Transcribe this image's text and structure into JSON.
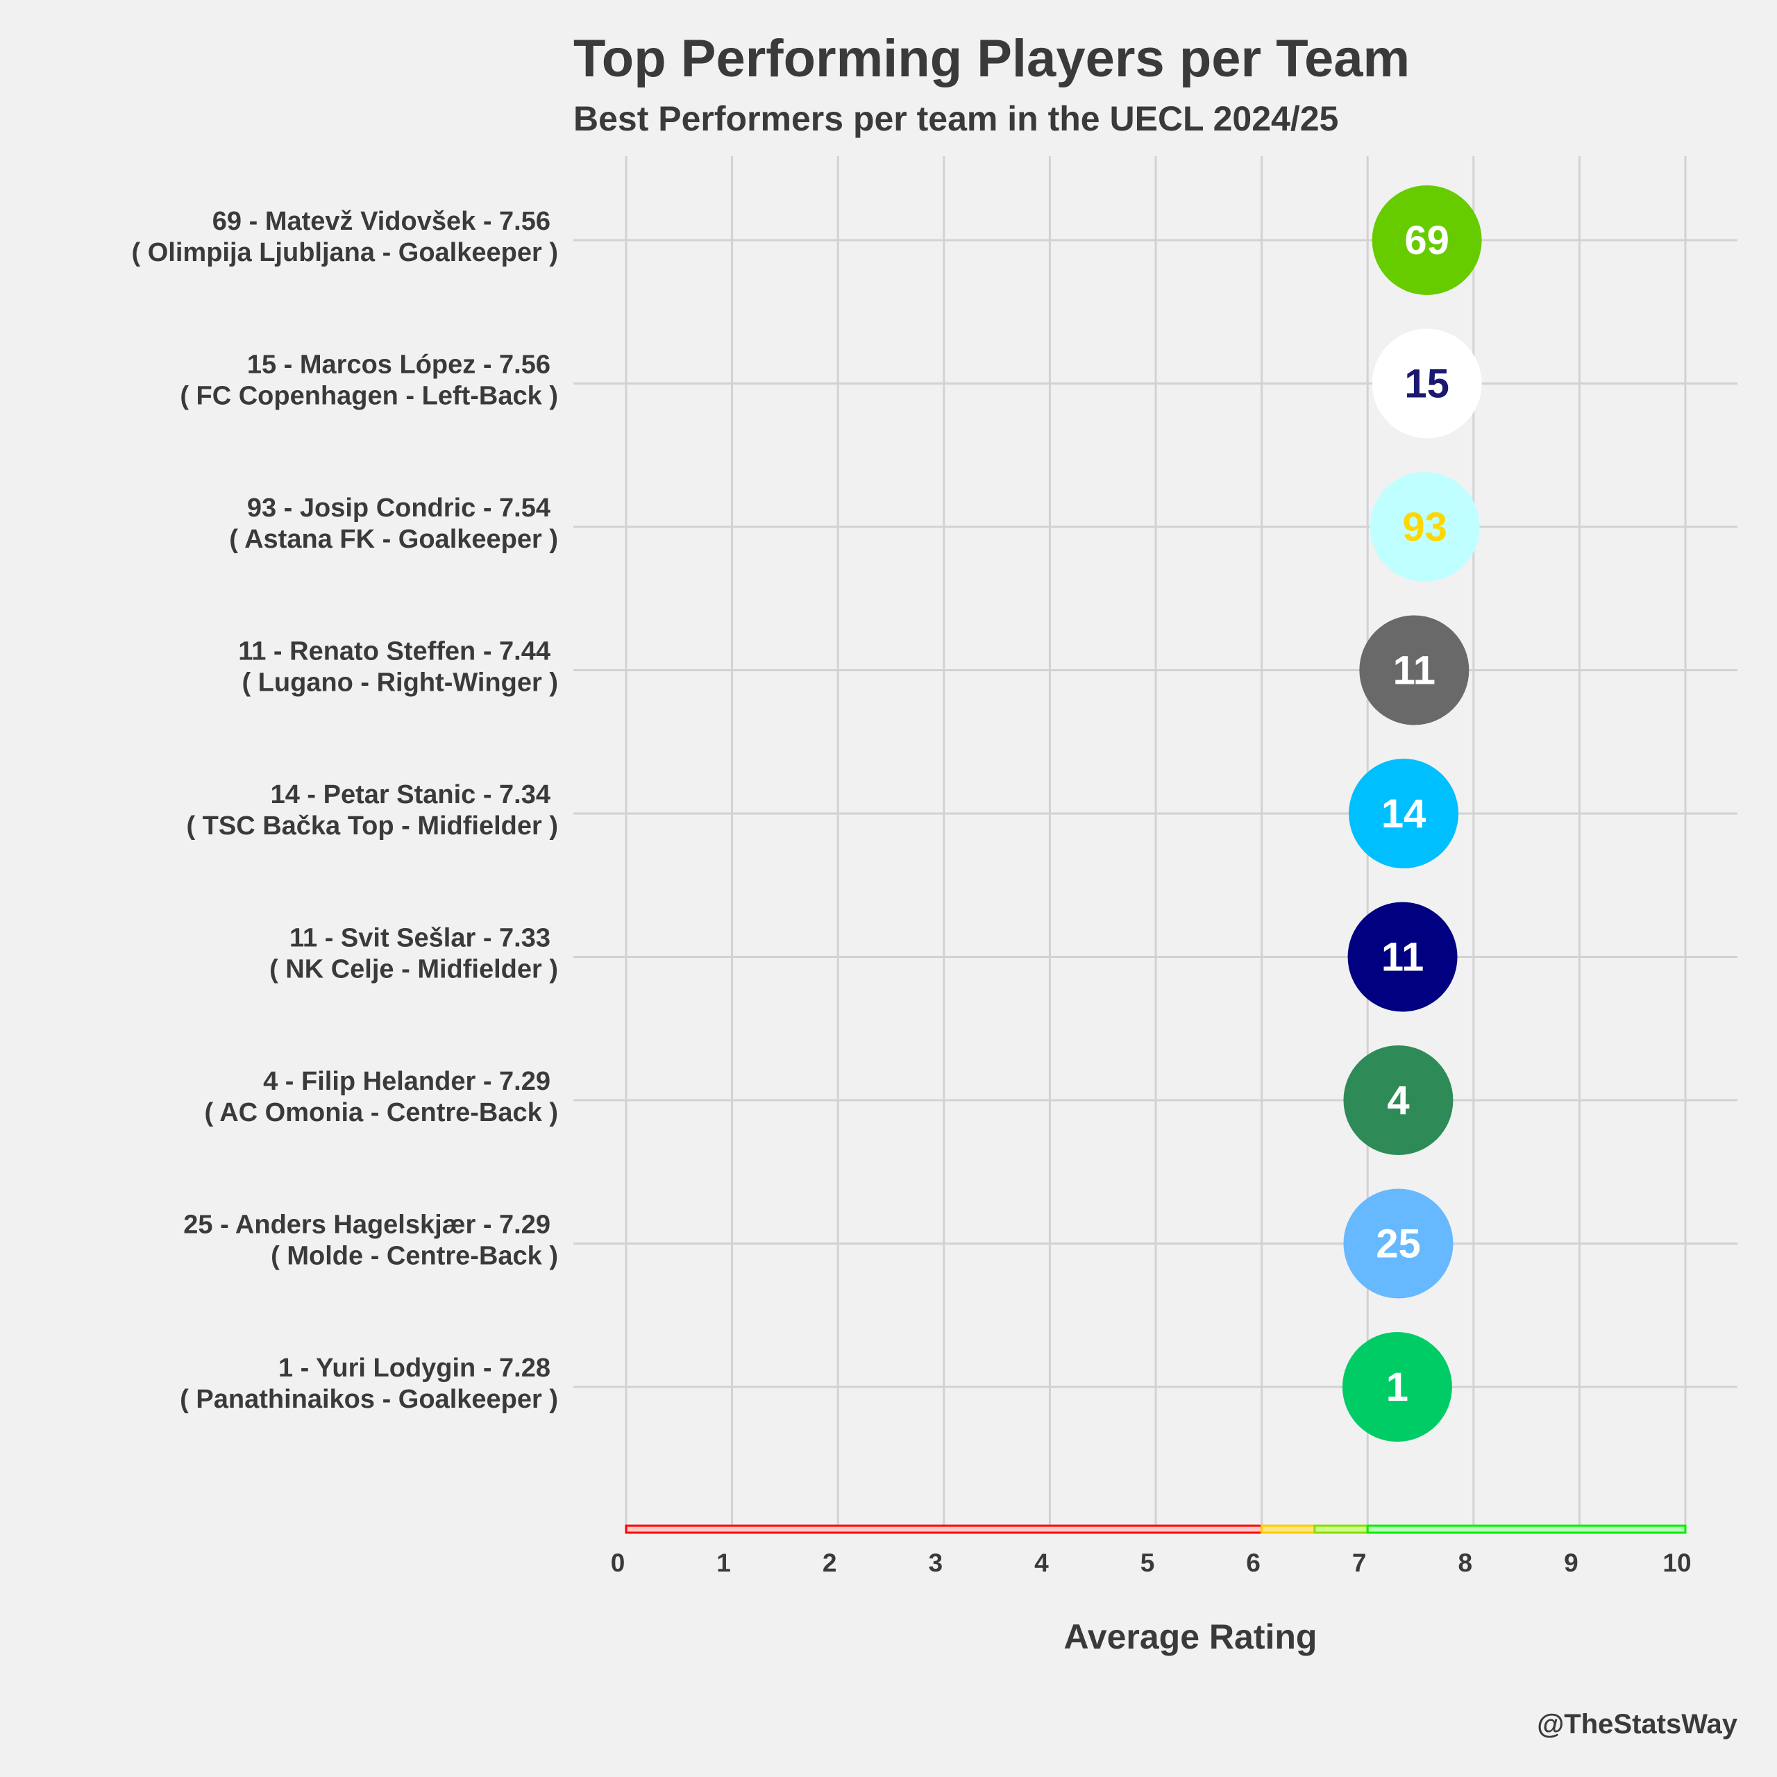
{
  "chart_data": {
    "type": "scatter",
    "title": "Top Performing Players per Team",
    "subtitle": "Best Performers per team in the UECL 2024/25",
    "xlabel": "Average Rating",
    "xlim": [
      0,
      10
    ],
    "x_ticks": [
      "0",
      "1",
      "2",
      "3",
      "4",
      "5",
      "6",
      "7",
      "8",
      "9",
      "10"
    ],
    "grid": true,
    "players": [
      {
        "number": "69",
        "name": "Matevž Vidovšek",
        "rating": 7.56,
        "team": "Olimpija Ljubljana",
        "position": "Goalkeeper",
        "label_line1": "69 - Matevž Vidovšek - 7.56",
        "label_line2": "( Olimpija Ljubljana - Goalkeeper )",
        "fill": "#66cc00",
        "text_color": "#ffffff"
      },
      {
        "number": "15",
        "name": "Marcos López",
        "rating": 7.56,
        "team": "FC Copenhagen",
        "position": "Left-Back",
        "label_line1": "15 - Marcos López - 7.56",
        "label_line2": "( FC Copenhagen - Left-Back )",
        "fill": "#ffffff",
        "text_color": "#191970"
      },
      {
        "number": "93",
        "name": "Josip Condric",
        "rating": 7.54,
        "team": "Astana FK",
        "position": "Goalkeeper",
        "label_line1": "93 - Josip Condric - 7.54",
        "label_line2": "( Astana FK - Goalkeeper )",
        "fill": "#bfffff",
        "text_color": "#ffd700"
      },
      {
        "number": "11",
        "name": "Renato Steffen",
        "rating": 7.44,
        "team": "Lugano",
        "position": "Right-Winger",
        "label_line1": "11 - Renato Steffen - 7.44",
        "label_line2": "( Lugano - Right-Winger )",
        "fill": "#696969",
        "text_color": "#ffffff"
      },
      {
        "number": "14",
        "name": "Petar Stanic",
        "rating": 7.34,
        "team": "TSC Bačka Top",
        "position": "Midfielder",
        "label_line1": "14 - Petar Stanic - 7.34",
        "label_line2": "( TSC Bačka Top - Midfielder )",
        "fill": "#00bfff",
        "text_color": "#ffffff"
      },
      {
        "number": "11",
        "name": "Svit Sešlar",
        "rating": 7.33,
        "team": "NK Celje",
        "position": "Midfielder",
        "label_line1": "11 - Svit Sešlar - 7.33",
        "label_line2": "( NK Celje - Midfielder )",
        "fill": "#000080",
        "text_color": "#ffffff"
      },
      {
        "number": "4",
        "name": "Filip Helander",
        "rating": 7.29,
        "team": "AC Omonia",
        "position": "Centre-Back",
        "label_line1": "4 - Filip Helander - 7.29",
        "label_line2": "( AC Omonia - Centre-Back )",
        "fill": "#2e8b57",
        "text_color": "#ffffff"
      },
      {
        "number": "25",
        "name": "Anders Hagelskjær",
        "rating": 7.29,
        "team": "Molde",
        "position": "Centre-Back",
        "label_line1": "25 - Anders Hagelskjær - 7.29",
        "label_line2": "( Molde - Centre-Back )",
        "fill": "#66b8ff",
        "text_color": "#ffffff"
      },
      {
        "number": "1",
        "name": "Yuri Lodygin",
        "rating": 7.28,
        "team": "Panathinaikos",
        "position": "Goalkeeper",
        "label_line1": "1 - Yuri Lodygin - 7.28",
        "label_line2": "( Panathinaikos - Goalkeeper )",
        "fill": "#00cc66",
        "text_color": "#ffffff"
      }
    ],
    "rating_bands": [
      {
        "from": 0,
        "to": 6,
        "fill": "#ffc8c8",
        "stroke": "#ff0000"
      },
      {
        "from": 6,
        "to": 6.5,
        "fill": "#ffe680",
        "stroke": "#ffcc00"
      },
      {
        "from": 6.5,
        "to": 7,
        "fill": "#ccff88",
        "stroke": "#88dd00"
      },
      {
        "from": 7,
        "to": 10,
        "fill": "#b8ffb8",
        "stroke": "#00ee00"
      }
    ]
  },
  "credit": "@TheStatsWay"
}
